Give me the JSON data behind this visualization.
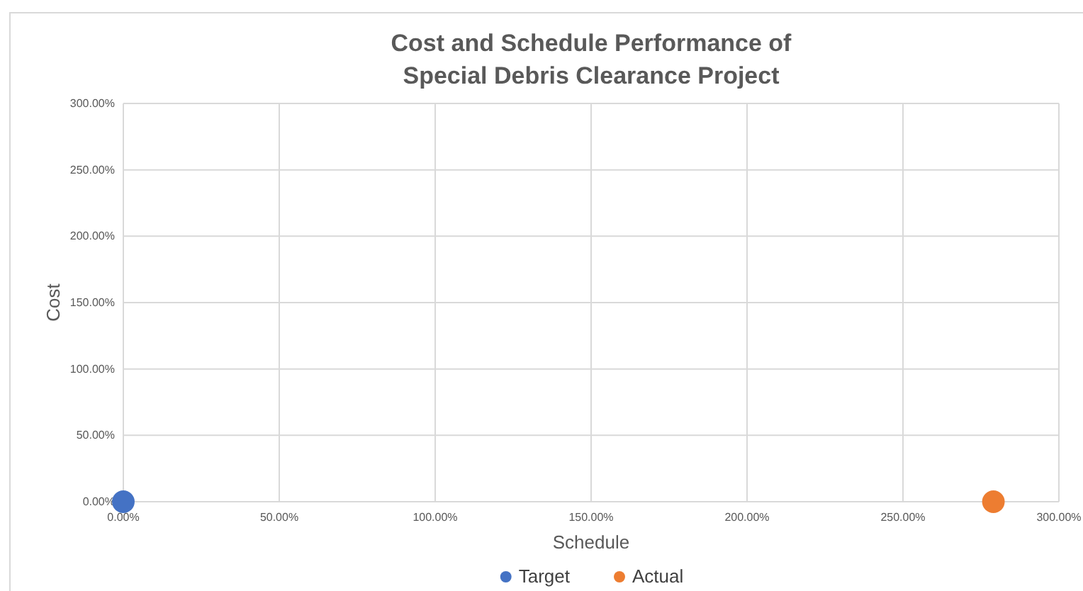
{
  "chart_data": {
    "type": "scatter",
    "title": "Cost and Schedule Performance of\nSpecial Debris Clearance Project",
    "xlabel": "Schedule",
    "ylabel": "Cost",
    "series": [
      {
        "name": "Target",
        "color": "#4472c4",
        "x": [
          0
        ],
        "values": [
          0
        ]
      },
      {
        "name": "Actual",
        "color": "#ed7d31",
        "x": [
          279
        ],
        "values": [
          0
        ]
      }
    ],
    "xlim": [
      0,
      300
    ],
    "ylim": [
      0,
      300
    ],
    "xticks": [
      {
        "value": 0,
        "label": "0.00%"
      },
      {
        "value": 50,
        "label": "50.00%"
      },
      {
        "value": 100,
        "label": "100.00%"
      },
      {
        "value": 150,
        "label": "150.00%"
      },
      {
        "value": 200,
        "label": "200.00%"
      },
      {
        "value": 250,
        "label": "250.00%"
      },
      {
        "value": 300,
        "label": "300.00%"
      }
    ],
    "yticks": [
      {
        "value": 0,
        "label": "0.00%"
      },
      {
        "value": 50,
        "label": "50.00%"
      },
      {
        "value": 100,
        "label": "100.00%"
      },
      {
        "value": 150,
        "label": "150.00%"
      },
      {
        "value": 200,
        "label": "200.00%"
      },
      {
        "value": 250,
        "label": "250.00%"
      },
      {
        "value": 300,
        "label": "300.00%"
      }
    ],
    "grid": true,
    "legend": "bottom",
    "marker": "circle"
  }
}
